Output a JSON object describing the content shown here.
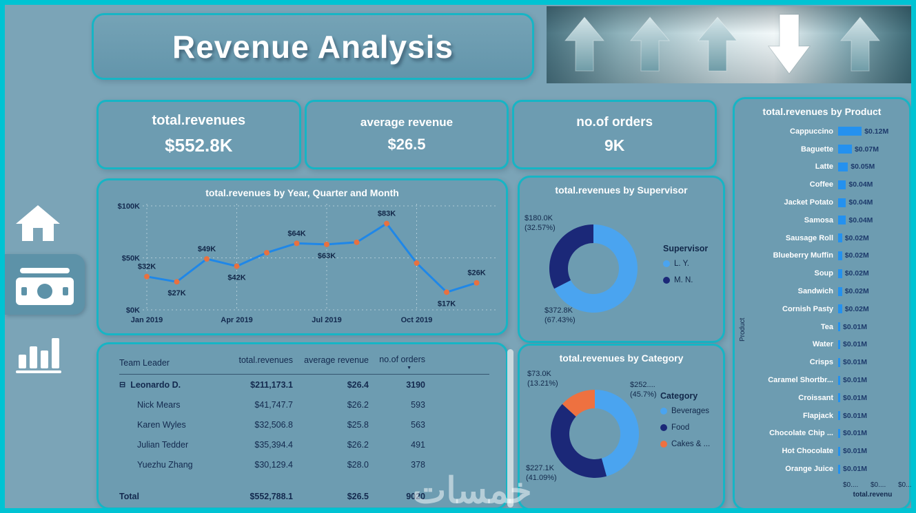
{
  "page": {
    "title": "Revenue Analysis",
    "watermark": "خمسات"
  },
  "colors": {
    "frame_teal": "#00c3d3",
    "card_bg": "#6d9cb1",
    "bar_blue": "#2491ef",
    "line_blue": "#1f87e8",
    "marker_orange": "#e8713f",
    "donut_lightblue": "#4aa4f0",
    "donut_navy": "#1b2878",
    "donut_orange": "#ee7140",
    "text_navy": "#13294e",
    "text_white": "#ffffff"
  },
  "sidebar": {
    "items": [
      {
        "id": "home",
        "icon": "home-icon",
        "active": false
      },
      {
        "id": "revenues",
        "icon": "money-icon",
        "active": true
      },
      {
        "id": "reports",
        "icon": "bar-chart-icon",
        "active": false
      }
    ]
  },
  "kpis": [
    {
      "label": "total.revenues",
      "value": "$552.8K"
    },
    {
      "label": "average revenue",
      "value": "$26.5"
    },
    {
      "label": "no.of orders",
      "value": "9K"
    }
  ],
  "chart_data": [
    {
      "type": "line",
      "title": "total.revenues by Year, Quarter and Month",
      "x": [
        "Jan 2019",
        "Feb 2019",
        "Mar 2019",
        "Apr 2019",
        "May 2019",
        "Jun 2019",
        "Jul 2019",
        "Aug 2019",
        "Sep 2019",
        "Oct 2019",
        "Nov 2019",
        "Dec 2019"
      ],
      "values": [
        32,
        27,
        49,
        42,
        55,
        64,
        63,
        65,
        83,
        45,
        17,
        26
      ],
      "point_labels": [
        "$32K",
        "$27K",
        "$49K",
        "$42K",
        "",
        "$64K",
        "$63K",
        "",
        "$83K",
        "",
        "$17K",
        "$26K"
      ],
      "label_side": [
        "above",
        "below",
        "above",
        "below",
        "",
        "above",
        "below",
        "",
        "above",
        "",
        "below",
        "above"
      ],
      "ylim": [
        0,
        100
      ],
      "yticks": [
        {
          "v": 0,
          "label": "$0K"
        },
        {
          "v": 50,
          "label": "$50K"
        },
        {
          "v": 100,
          "label": "$100K"
        }
      ],
      "xticks": [
        {
          "i": 0,
          "label": "Jan 2019"
        },
        {
          "i": 3,
          "label": "Apr 2019"
        },
        {
          "i": 6,
          "label": "Jul 2019"
        },
        {
          "i": 9,
          "label": "Oct 2019"
        }
      ],
      "grid": true,
      "legend": false
    },
    {
      "type": "donut",
      "title": "total.revenues by Supervisor",
      "legend_title": "Supervisor",
      "legend_position": "right",
      "slices": [
        {
          "name": "L. Y.",
          "value_label": "$372.8K",
          "pct_label": "(67.43%)",
          "pct": 67.43,
          "color": "donut_lightblue"
        },
        {
          "name": "M. N.",
          "value_label": "$180.0K",
          "pct_label": "(32.57%)",
          "pct": 32.57,
          "color": "donut_navy"
        }
      ]
    },
    {
      "type": "donut",
      "title": "total.revenues by Category",
      "legend_title": "Category",
      "legend_position": "right",
      "slices": [
        {
          "name": "Beverages",
          "value_label": "$252....",
          "pct_label": "(45.7%)",
          "pct": 45.7,
          "color": "donut_lightblue"
        },
        {
          "name": "Food",
          "value_label": "$227.1K",
          "pct_label": "(41.09%)",
          "pct": 41.09,
          "color": "donut_navy"
        },
        {
          "name": "Cakes & ...",
          "value_label": "$73.0K",
          "pct_label": "(13.21%)",
          "pct": 13.21,
          "color": "donut_orange"
        }
      ]
    },
    {
      "type": "bar",
      "title": "total.revenues by Product",
      "xlabel": "total.revenu",
      "ylabel": "Product",
      "xticks": [
        "$0....",
        "$0....",
        "$0..."
      ],
      "categories": [
        "Cappuccino",
        "Baguette",
        "Latte",
        "Coffee",
        "Jacket Potato",
        "Samosa",
        "Sausage Roll",
        "Blueberry Muffin",
        "Soup",
        "Sandwich",
        "Cornish Pasty",
        "Tea",
        "Water",
        "Crisps",
        "Caramel Shortbr...",
        "Croissant",
        "Flapjack",
        "Chocolate Chip ...",
        "Hot Chocolate",
        "Orange Juice"
      ],
      "values": [
        0.12,
        0.07,
        0.05,
        0.04,
        0.04,
        0.04,
        0.02,
        0.02,
        0.02,
        0.02,
        0.02,
        0.01,
        0.01,
        0.01,
        0.01,
        0.01,
        0.01,
        0.01,
        0.01,
        0.01
      ],
      "labels": [
        "$0.12M",
        "$0.07M",
        "$0.05M",
        "$0.04M",
        "$0.04M",
        "$0.04M",
        "$0.02M",
        "$0.02M",
        "$0.02M",
        "$0.02M",
        "$0.02M",
        "$0.01M",
        "$0.01M",
        "$0.01M",
        "$0.01M",
        "$0.01M",
        "$0.01M",
        "$0.01M",
        "$0.01M",
        "$0.01M"
      ]
    },
    {
      "type": "table",
      "columns": [
        "Team Leader",
        "total.revenues",
        "average revenue",
        "no.of orders"
      ],
      "sort_column": "no.of orders",
      "rows": [
        {
          "name": "Leonardo D.",
          "revenues": "$211,173.1",
          "avg": "$26.4",
          "orders": "3190",
          "bold": true,
          "expand": "⊟"
        },
        {
          "name": "Nick Mears",
          "revenues": "$41,747.7",
          "avg": "$26.2",
          "orders": "593"
        },
        {
          "name": "Karen Wyles",
          "revenues": "$32,506.8",
          "avg": "$25.8",
          "orders": "563"
        },
        {
          "name": "Julian Tedder",
          "revenues": "$35,394.4",
          "avg": "$26.2",
          "orders": "491"
        },
        {
          "name": "Yuezhu Zhang",
          "revenues": "$30,129.4",
          "avg": "$28.0",
          "orders": "378"
        }
      ],
      "total": {
        "name": "Total",
        "revenues": "$552,788.1",
        "avg": "$26.5",
        "orders": "9020"
      }
    }
  ]
}
